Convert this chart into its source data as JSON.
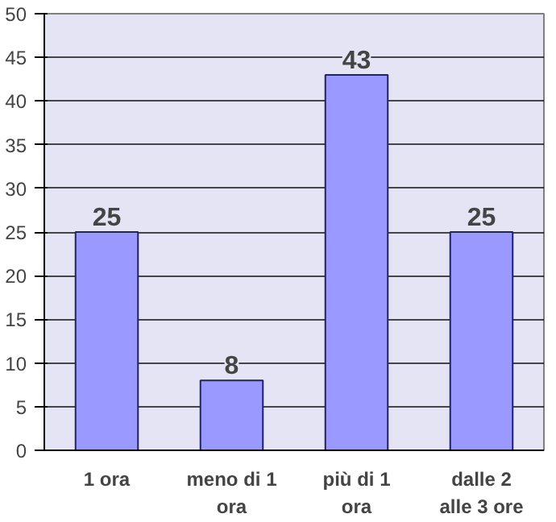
{
  "chart_data": {
    "type": "bar",
    "categories": [
      "1 ora",
      "meno di 1 ora",
      "più di 1 ora",
      "dalle 2 alle 3 ore"
    ],
    "values": [
      25,
      8,
      43,
      25
    ],
    "color": "#9999ff",
    "ylim": [
      0,
      50
    ],
    "yticks": [
      0,
      5,
      10,
      15,
      20,
      25,
      30,
      35,
      40,
      45,
      50
    ],
    "grid": "y",
    "data_labels": true
  }
}
